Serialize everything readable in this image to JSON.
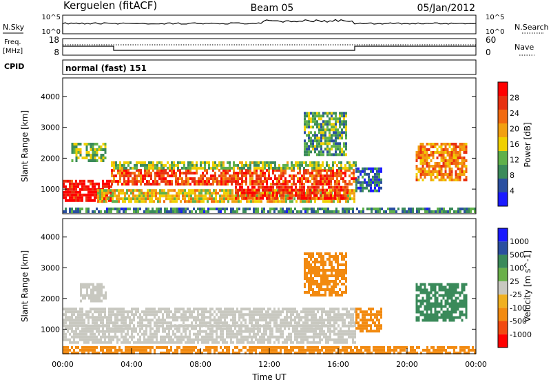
{
  "header": {
    "station": "Kerguelen (fitACF)",
    "beam": "Beam 05",
    "date": "05/Jan/2012"
  },
  "status_panels": {
    "nsky": {
      "label": "N.Sky",
      "ticks": [
        "10^5",
        "10^0"
      ],
      "right_label": "N.Search",
      "right_ticks": [
        "10^5",
        "10^0"
      ]
    },
    "freq": {
      "label_top": "Freq.",
      "label_bottom": "[MHz]",
      "ticks": [
        "18",
        "8"
      ],
      "right_label": "Nave",
      "right_ticks": [
        "60",
        "0"
      ]
    },
    "cpid": {
      "label": "CPID",
      "mode": "normal (fast) 151"
    }
  },
  "colors": {
    "power_scale": [
      "#1a1aff",
      "#2a4fa0",
      "#3a8a5a",
      "#5fb04a",
      "#f0d000",
      "#f2a010",
      "#f26a10",
      "#e83010",
      "#ff0000"
    ],
    "velocity_scale": [
      "#ff0000",
      "#f24a10",
      "#f28a10",
      "#f0b020",
      "#c8c8c0",
      "#6ab04a",
      "#3a8a5a",
      "#2a4fa0",
      "#1a1aff"
    ]
  },
  "chart_data": [
    {
      "type": "heatmap",
      "name": "power",
      "ylabel": "Slant Range [km]",
      "ylim": [
        200,
        4600
      ],
      "yticks": [
        1000,
        2000,
        3000,
        4000
      ],
      "xlim": [
        0,
        24
      ],
      "colorbar": {
        "label": "Power [dB]",
        "ticks": [
          "4",
          "8",
          "12",
          "16",
          "20",
          "24",
          "28"
        ],
        "range": [
          0,
          30
        ]
      },
      "bands": [
        {
          "t0": 0.0,
          "t1": 2.8,
          "r0": 600,
          "r1": 1300,
          "level": 28
        },
        {
          "t0": 2.8,
          "t1": 17.0,
          "r0": 1150,
          "r1": 1650,
          "level": 24
        },
        {
          "t0": 2.8,
          "t1": 17.0,
          "r0": 1650,
          "r1": 1900,
          "level": 12
        },
        {
          "t0": 2.0,
          "t1": 17.0,
          "r0": 600,
          "r1": 1000,
          "level": 16
        },
        {
          "t0": 10.0,
          "t1": 16.5,
          "r0": 700,
          "r1": 1100,
          "level": 26
        },
        {
          "t0": 0.0,
          "t1": 24.0,
          "r0": 250,
          "r1": 400,
          "level": 8
        },
        {
          "t0": 14.0,
          "t1": 16.5,
          "r0": 2100,
          "r1": 3500,
          "level": 10
        },
        {
          "t0": 17.0,
          "t1": 18.5,
          "r0": 900,
          "r1": 1700,
          "level": 6
        },
        {
          "t0": 20.5,
          "t1": 23.5,
          "r0": 1300,
          "r1": 2500,
          "level": 20
        },
        {
          "t0": 0.5,
          "t1": 2.5,
          "r0": 1900,
          "r1": 2500,
          "level": 12
        }
      ]
    },
    {
      "type": "heatmap",
      "name": "velocity",
      "ylabel": "Slant Range [km]",
      "xlabel": "Time UT",
      "ylim": [
        200,
        4600
      ],
      "yticks": [
        1000,
        2000,
        3000,
        4000
      ],
      "xlim": [
        0,
        24
      ],
      "xticks": [
        "00:00",
        "04:00",
        "08:00",
        "12:00",
        "16:00",
        "20:00",
        "00:00"
      ],
      "colorbar": {
        "label": "Velocity [m s^-1]",
        "ticks": [
          "-1000",
          "-500",
          "-100",
          "-25",
          "25",
          "100",
          "500",
          "1000"
        ]
      },
      "bands": [
        {
          "t0": 0.0,
          "t1": 17.0,
          "r0": 1150,
          "r1": 1700,
          "level": 0
        },
        {
          "t0": 0.0,
          "t1": 17.0,
          "r0": 600,
          "r1": 1150,
          "level": 0
        },
        {
          "t0": 1.0,
          "t1": 2.5,
          "r0": 1900,
          "r1": 2500,
          "level": 0
        },
        {
          "t0": 0.0,
          "t1": 24.0,
          "r0": 250,
          "r1": 450,
          "level": -150
        },
        {
          "t0": 14.0,
          "t1": 16.5,
          "r0": 2100,
          "r1": 3500,
          "level": -120
        },
        {
          "t0": 17.0,
          "t1": 18.5,
          "r0": 900,
          "r1": 1700,
          "level": -200
        },
        {
          "t0": 20.5,
          "t1": 23.5,
          "r0": 1300,
          "r1": 2500,
          "level": 300
        }
      ]
    }
  ]
}
